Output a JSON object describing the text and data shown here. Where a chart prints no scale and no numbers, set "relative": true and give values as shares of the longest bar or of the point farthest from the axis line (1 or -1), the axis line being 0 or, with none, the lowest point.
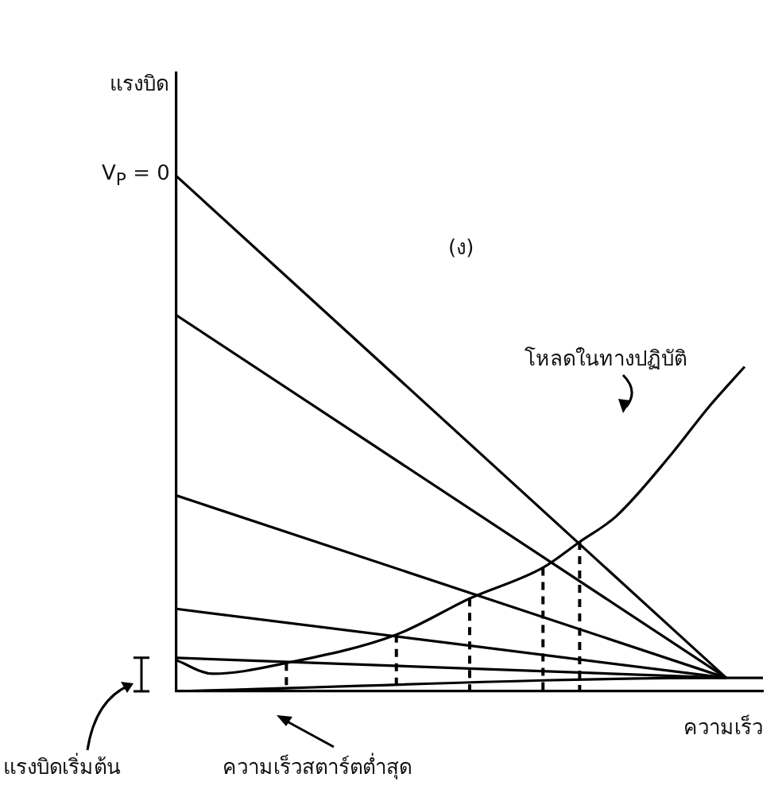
{
  "chart_data": {
    "type": "line",
    "relative": true,
    "xlabel": "ความเร็ว",
    "ylabel": "แรงบิด",
    "tick_labels": false,
    "grid": false,
    "legend": false,
    "marker": "none",
    "line_style": "solid",
    "categories": [
      null,
      null,
      null,
      null,
      null,
      null,
      null,
      null,
      null,
      null,
      null,
      null,
      null,
      null,
      null,
      null,
      null,
      null,
      null,
      null,
      null,
      null,
      null,
      null,
      null,
      null,
      null,
      null,
      null,
      null,
      null,
      null,
      null
    ],
    "annotations": [
      "V$_{P}$ = 0",
      "(ง)",
      "โหลดในทางปฏิบัติ",
      "แรงบิดเริ่มต้น",
      "ความเร็วสตาร์ตต่ำสุด"
    ],
    "series": [
      {
        "color": "#000000",
        "values": [
          1,
          null,
          null,
          null,
          null,
          null,
          null,
          null,
          null,
          null,
          null,
          null,
          null,
          null,
          null,
          null,
          null,
          null,
          null,
          null,
          null,
          null,
          null,
          null,
          null,
          null,
          null,
          null,
          null,
          null,
          0.026,
          null,
          null
        ]
      },
      {
        "color": "#000000",
        "values": [
          0.73,
          null,
          null,
          null,
          null,
          null,
          null,
          null,
          null,
          null,
          null,
          null,
          null,
          null,
          null,
          null,
          null,
          null,
          null,
          null,
          null,
          null,
          null,
          null,
          null,
          null,
          null,
          null,
          null,
          null,
          0.026,
          null,
          null
        ]
      },
      {
        "color": "#000000",
        "values": [
          0.38,
          null,
          null,
          null,
          null,
          null,
          null,
          null,
          null,
          null,
          null,
          null,
          null,
          null,
          null,
          null,
          null,
          null,
          null,
          null,
          null,
          null,
          null,
          null,
          null,
          null,
          null,
          null,
          null,
          null,
          0.026,
          null,
          null
        ]
      },
      {
        "color": "#000000",
        "values": [
          0.16,
          null,
          null,
          null,
          null,
          null,
          null,
          null,
          null,
          null,
          null,
          null,
          null,
          null,
          null,
          null,
          null,
          null,
          null,
          null,
          null,
          null,
          null,
          null,
          null,
          null,
          null,
          null,
          null,
          null,
          0.026,
          null,
          null
        ]
      },
      {
        "color": "#000000",
        "values": [
          0.065,
          null,
          null,
          null,
          null,
          null,
          null,
          null,
          null,
          null,
          null,
          null,
          null,
          null,
          null,
          null,
          null,
          null,
          null,
          null,
          null,
          null,
          null,
          null,
          null,
          null,
          null,
          null,
          null,
          null,
          0.026,
          null,
          null
        ]
      },
      {
        "color": "#000000",
        "values": [
          0,
          null,
          null,
          null,
          null,
          null,
          null,
          null,
          null,
          null,
          null,
          null,
          null,
          null,
          null,
          null,
          null,
          null,
          null,
          null,
          null,
          null,
          null,
          null,
          null,
          null,
          null,
          null,
          null,
          null,
          0.026,
          0.026,
          0.026
        ]
      },
      {
        "color": "#000000",
        "values": [
          0.06,
          null,
          0.034,
          null,
          null,
          null,
          0.055,
          null,
          null,
          null,
          null,
          null,
          0.11,
          null,
          null,
          null,
          0.18,
          null,
          null,
          null,
          0.24,
          null,
          0.29,
          null,
          0.34,
          null,
          null,
          0.46,
          null,
          0.55,
          null,
          0.63,
          null
        ]
      }
    ]
  }
}
